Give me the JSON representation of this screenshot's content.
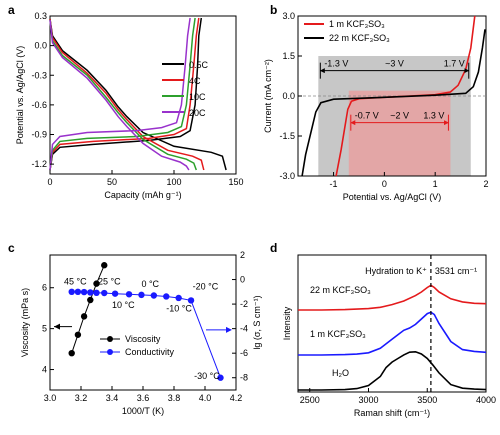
{
  "chart_data": [
    {
      "panel": "a",
      "type": "line",
      "xlabel": "Capacity (mAh g⁻¹)",
      "ylabel": "Potential vs. Ag/AgCl (V)",
      "xlim": [
        0,
        150
      ],
      "ylim": [
        -1.3,
        0.3
      ],
      "xticks": [
        0,
        50,
        100,
        150
      ],
      "yticks": [
        -1.2,
        -0.9,
        -0.6,
        -0.3,
        0.0,
        0.3
      ],
      "xtick_labels": [
        "0",
        "50",
        "100",
        "150"
      ],
      "ytick_labels": [
        "-1.2",
        "-0.9",
        "-0.6",
        "-0.3",
        "0.0",
        "0.3"
      ],
      "legend_position": "right",
      "series": [
        {
          "name": "0.5C",
          "color": "#000000",
          "charge": [
            [
              0,
              -1.26
            ],
            [
              2,
              -1.1
            ],
            [
              8,
              -1.03
            ],
            [
              35,
              -1.0
            ],
            [
              80,
              -0.96
            ],
            [
              105,
              -0.92
            ],
            [
              113,
              -0.86
            ],
            [
              117,
              -0.6
            ],
            [
              119,
              -0.2
            ],
            [
              120,
              0.1
            ],
            [
              122,
              0.28
            ]
          ],
          "discharge": [
            [
              0,
              0.27
            ],
            [
              2,
              0.1
            ],
            [
              10,
              -0.05
            ],
            [
              30,
              -0.25
            ],
            [
              45,
              -0.45
            ],
            [
              55,
              -0.62
            ],
            [
              62,
              -0.72
            ],
            [
              75,
              -0.88
            ],
            [
              100,
              -1.02
            ],
            [
              130,
              -1.08
            ],
            [
              139,
              -1.12
            ],
            [
              142,
              -1.26
            ]
          ]
        },
        {
          "name": "4C",
          "color": "#e41a1c",
          "charge": [
            [
              0,
              -1.26
            ],
            [
              2,
              -1.08
            ],
            [
              8,
              -1.0
            ],
            [
              35,
              -0.97
            ],
            [
              80,
              -0.94
            ],
            [
              100,
              -0.9
            ],
            [
              110,
              -0.84
            ],
            [
              113,
              -0.6
            ],
            [
              116,
              -0.2
            ],
            [
              118,
              0.1
            ],
            [
              120,
              0.28
            ]
          ],
          "discharge": [
            [
              0,
              0.27
            ],
            [
              2,
              0.08
            ],
            [
              10,
              -0.07
            ],
            [
              30,
              -0.28
            ],
            [
              45,
              -0.48
            ],
            [
              55,
              -0.65
            ],
            [
              62,
              -0.75
            ],
            [
              75,
              -0.92
            ],
            [
              95,
              -1.06
            ],
            [
              115,
              -1.12
            ],
            [
              122,
              -1.16
            ],
            [
              124,
              -1.26
            ]
          ]
        },
        {
          "name": "10C",
          "color": "#2ca02c",
          "charge": [
            [
              0,
              -1.26
            ],
            [
              2,
              -1.06
            ],
            [
              8,
              -0.97
            ],
            [
              30,
              -0.94
            ],
            [
              70,
              -0.92
            ],
            [
              95,
              -0.88
            ],
            [
              106,
              -0.82
            ],
            [
              110,
              -0.6
            ],
            [
              113,
              -0.2
            ],
            [
              115,
              0.1
            ],
            [
              117,
              0.28
            ]
          ],
          "discharge": [
            [
              0,
              0.26
            ],
            [
              2,
              0.05
            ],
            [
              10,
              -0.1
            ],
            [
              30,
              -0.3
            ],
            [
              45,
              -0.52
            ],
            [
              55,
              -0.68
            ],
            [
              62,
              -0.78
            ],
            [
              75,
              -0.95
            ],
            [
              95,
              -1.1
            ],
            [
              110,
              -1.15
            ],
            [
              116,
              -1.19
            ],
            [
              118,
              -1.26
            ]
          ]
        },
        {
          "name": "20C",
          "color": "#9932cc",
          "charge": [
            [
              0,
              -1.26
            ],
            [
              2,
              -1.0
            ],
            [
              8,
              -0.92
            ],
            [
              30,
              -0.88
            ],
            [
              70,
              -0.86
            ],
            [
              90,
              -0.83
            ],
            [
              102,
              -0.78
            ],
            [
              106,
              -0.6
            ],
            [
              109,
              -0.2
            ],
            [
              111,
              0.1
            ],
            [
              113,
              0.28
            ]
          ],
          "discharge": [
            [
              0,
              0.26
            ],
            [
              2,
              0.03
            ],
            [
              10,
              -0.12
            ],
            [
              30,
              -0.33
            ],
            [
              45,
              -0.55
            ],
            [
              55,
              -0.72
            ],
            [
              62,
              -0.82
            ],
            [
              75,
              -0.99
            ],
            [
              90,
              -1.12
            ],
            [
              105,
              -1.18
            ],
            [
              110,
              -1.22
            ],
            [
              112,
              -1.26
            ]
          ]
        }
      ]
    },
    {
      "panel": "b",
      "type": "line",
      "xlabel": "Potential vs. Ag/AgCl (V)",
      "ylabel": "Current (mA cm⁻²)",
      "xlim": [
        -1.7,
        2.0
      ],
      "ylim": [
        -3.0,
        3.0
      ],
      "xticks": [
        -1,
        0,
        1,
        2
      ],
      "yticks": [
        -3.0,
        -1.5,
        0.0,
        1.5,
        3.0
      ],
      "xtick_labels": [
        "-1",
        "0",
        "1",
        "2"
      ],
      "ytick_labels": [
        "-3.0",
        "-1.5",
        "0.0",
        "1.5",
        "3.0"
      ],
      "legend_position": "top-left",
      "windows": [
        {
          "x": [
            -1.3,
            1.7
          ],
          "y": [
            -3.0,
            1.5
          ],
          "color": "#bdbdbd",
          "label": "~3 V",
          "left_label": "-1.3 V",
          "right_label": "1.7 V"
        },
        {
          "x": [
            -0.7,
            1.3
          ],
          "y": [
            -3.0,
            0.2
          ],
          "color": "#e8a0a0",
          "label": "~2 V",
          "left_label": "-0.7 V",
          "right_label": "1.3 V"
        }
      ],
      "series": [
        {
          "name": "1 m KCF₃SO₃",
          "color": "#e41a1c",
          "points": [
            [
              -0.95,
              -3.0
            ],
            [
              -0.85,
              -2.0
            ],
            [
              -0.78,
              -1.2
            ],
            [
              -0.72,
              -0.5
            ],
            [
              -0.65,
              -0.2
            ],
            [
              -0.5,
              -0.1
            ],
            [
              0,
              -0.05
            ],
            [
              0.5,
              0.0
            ],
            [
              1.0,
              0.05
            ],
            [
              1.3,
              0.15
            ],
            [
              1.45,
              0.4
            ],
            [
              1.6,
              1.0
            ],
            [
              1.7,
              1.8
            ],
            [
              1.78,
              3.0
            ]
          ]
        },
        {
          "name": "22 m KCF₃SO₃",
          "color": "#000000",
          "points": [
            [
              -1.62,
              -3.0
            ],
            [
              -1.55,
              -2.2
            ],
            [
              -1.45,
              -1.4
            ],
            [
              -1.35,
              -0.6
            ],
            [
              -1.25,
              -0.25
            ],
            [
              -1.0,
              -0.12
            ],
            [
              0,
              -0.05
            ],
            [
              1.0,
              0.03
            ],
            [
              1.6,
              0.1
            ],
            [
              1.75,
              0.35
            ],
            [
              1.85,
              0.9
            ],
            [
              1.93,
              1.8
            ],
            [
              1.98,
              2.5
            ]
          ]
        }
      ]
    },
    {
      "panel": "c",
      "type": "scatter",
      "xlabel": "1000/T (K)",
      "ylabel": "Viscosity (mPa s)",
      "y2label": "lg (σ, S cm⁻¹)",
      "xlim": [
        3.0,
        4.2
      ],
      "ylim": [
        3.5,
        6.8
      ],
      "y2lim": [
        -9,
        2
      ],
      "xticks": [
        3.0,
        3.2,
        3.4,
        3.6,
        3.8,
        4.0,
        4.2
      ],
      "yticks": [
        4,
        5,
        6
      ],
      "y2ticks": [
        2,
        0,
        -2,
        -4,
        -6,
        -8
      ],
      "xtick_labels": [
        "3.0",
        "3.2",
        "3.4",
        "3.6",
        "3.8",
        "4.0",
        "4.2"
      ],
      "ytick_labels": [
        "4",
        "5",
        "6"
      ],
      "y2tick_labels": [
        "2",
        "0",
        "-2",
        "-4",
        "-6",
        "-8"
      ],
      "legend_position": "bottom-center",
      "series": [
        {
          "name": "Viscosity",
          "color": "#000000",
          "axis": "left",
          "x": [
            3.14,
            3.18,
            3.22,
            3.26,
            3.3,
            3.35
          ],
          "y": [
            4.4,
            4.85,
            5.3,
            5.7,
            6.1,
            6.55
          ]
        },
        {
          "name": "Conductivity",
          "color": "#1a1aff",
          "axis": "right",
          "x": [
            3.14,
            3.18,
            3.22,
            3.26,
            3.3,
            3.35,
            3.42,
            3.51,
            3.59,
            3.67,
            3.75,
            3.83,
            3.91,
            4.1
          ],
          "y": [
            -1.0,
            -1.0,
            -1.02,
            -1.05,
            -1.08,
            -1.1,
            -1.15,
            -1.2,
            -1.25,
            -1.3,
            -1.38,
            -1.5,
            -1.7,
            -8.0
          ]
        }
      ],
      "annotations": [
        {
          "text": "45 °C",
          "color": "#1a1aff"
        },
        {
          "text": "25 °C",
          "color": "#1a1aff"
        },
        {
          "text": "0 °C",
          "color": "#1a1aff"
        },
        {
          "text": "10 °C",
          "color": "#1a1aff"
        },
        {
          "text": "-10 °C",
          "color": "#1a1aff"
        },
        {
          "text": "-20 °C",
          "color": "#1a1aff"
        },
        {
          "text": "-30 °C",
          "color": "#1a1aff"
        }
      ]
    },
    {
      "panel": "d",
      "type": "line",
      "xlabel": "Raman shift (cm⁻¹)",
      "ylabel": "Intensity",
      "xlim": [
        2400,
        4000
      ],
      "xticks": [
        2500,
        3000,
        3500,
        4000
      ],
      "xtick_labels": [
        "2500",
        "3000",
        "3500",
        "4000"
      ],
      "dashed_line_x": 3531,
      "annotation": "Hydration to K⁺",
      "annotation_value": "3531 cm⁻¹",
      "series": [
        {
          "name": "22 m KCF₃SO₃",
          "color": "#e41a1c",
          "x": [
            2400,
            2600,
            2800,
            3000,
            3100,
            3200,
            3300,
            3400,
            3450,
            3500,
            3531,
            3560,
            3600,
            3700,
            3800,
            3900,
            4000
          ],
          "y": [
            0.0,
            0.0,
            0.01,
            0.03,
            0.06,
            0.12,
            0.2,
            0.32,
            0.4,
            0.5,
            0.55,
            0.5,
            0.4,
            0.25,
            0.18,
            0.15,
            0.14
          ]
        },
        {
          "name": "1 m KCF₃SO₃",
          "color": "#1a1aff",
          "x": [
            2400,
            2600,
            2800,
            2900,
            3000,
            3100,
            3200,
            3250,
            3300,
            3350,
            3400,
            3450,
            3500,
            3531,
            3560,
            3600,
            3700,
            3800,
            3900,
            4000
          ],
          "y": [
            0.0,
            0.0,
            0.01,
            0.02,
            0.05,
            0.15,
            0.35,
            0.45,
            0.55,
            0.6,
            0.68,
            0.8,
            0.92,
            0.95,
            0.9,
            0.7,
            0.3,
            0.12,
            0.08,
            0.06
          ]
        },
        {
          "name": "H₂O",
          "color": "#000000",
          "x": [
            2400,
            2600,
            2800,
            2900,
            3000,
            3100,
            3150,
            3200,
            3250,
            3300,
            3350,
            3400,
            3450,
            3500,
            3550,
            3600,
            3700,
            3800,
            3900,
            4000
          ],
          "y": [
            0.0,
            0.0,
            0.01,
            0.03,
            0.1,
            0.3,
            0.5,
            0.62,
            0.7,
            0.78,
            0.84,
            0.85,
            0.8,
            0.7,
            0.55,
            0.38,
            0.12,
            0.04,
            0.02,
            0.01
          ]
        }
      ],
      "labels": [
        {
          "text": "22 m KCF₃SO₃",
          "color": "#e41a1c"
        },
        {
          "text": "1 m KCF₃SO₃",
          "color": "#1a1aff"
        },
        {
          "text": "H₂O",
          "color": "#000000"
        }
      ]
    }
  ]
}
